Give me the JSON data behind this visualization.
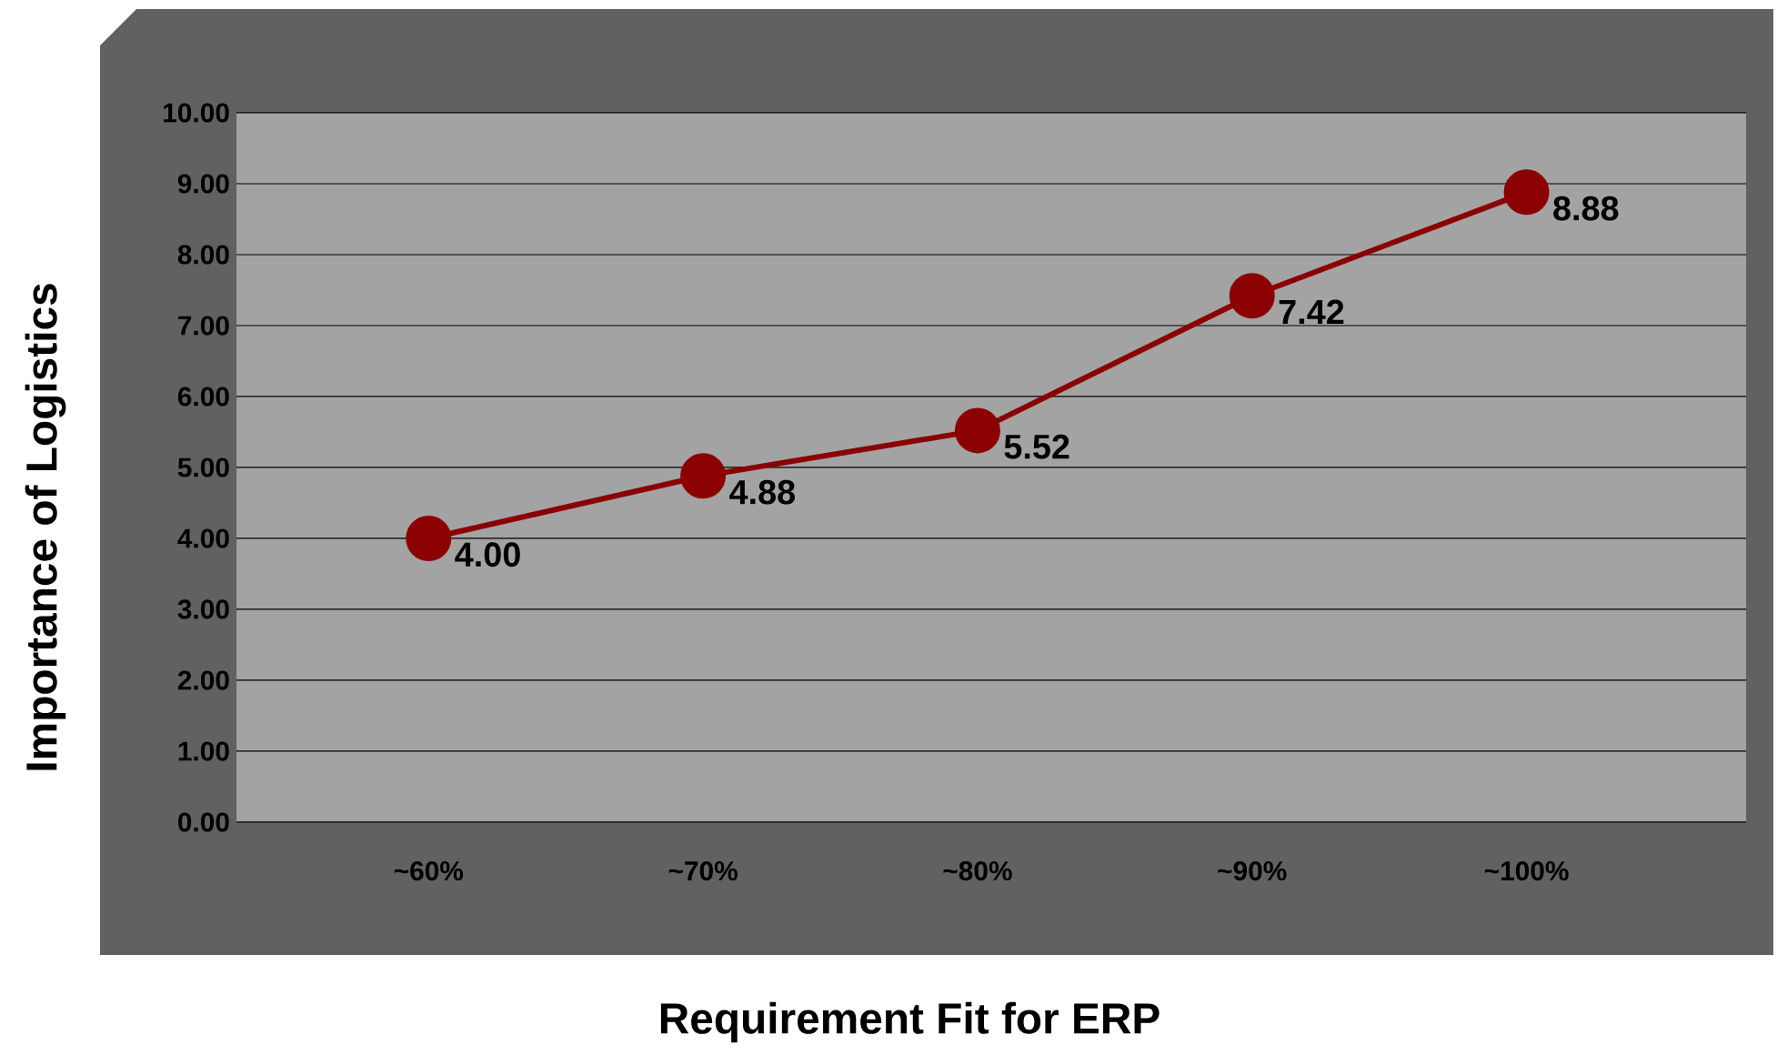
{
  "chart_data": {
    "type": "line",
    "xlabel": "Requirement Fit for ERP",
    "ylabel": "Importance of Logistics",
    "categories": [
      "~60%",
      "~70%",
      "~80%",
      "~90%",
      "~100%"
    ],
    "series": [
      {
        "color": "#8b0000",
        "values": [
          4.0,
          4.88,
          5.52,
          7.42,
          8.88
        ],
        "value_labels": [
          "4.00",
          "4.88",
          "5.52",
          "7.42",
          "8.88"
        ]
      }
    ],
    "ylim": [
      0,
      10
    ],
    "yticks": [
      {
        "value": 0,
        "label": "0.00"
      },
      {
        "value": 1,
        "label": "1.00"
      },
      {
        "value": 2,
        "label": "2.00"
      },
      {
        "value": 3,
        "label": "3.00"
      },
      {
        "value": 4,
        "label": "4.00"
      },
      {
        "value": 5,
        "label": "5.00"
      },
      {
        "value": 6,
        "label": "6.00"
      },
      {
        "value": 7,
        "label": "7.00"
      },
      {
        "value": 8,
        "label": "8.00"
      },
      {
        "value": 9,
        "label": "9.00"
      },
      {
        "value": 10,
        "label": "10.00"
      }
    ],
    "grid": "y",
    "marker": "circle",
    "line_style": "solid"
  }
}
